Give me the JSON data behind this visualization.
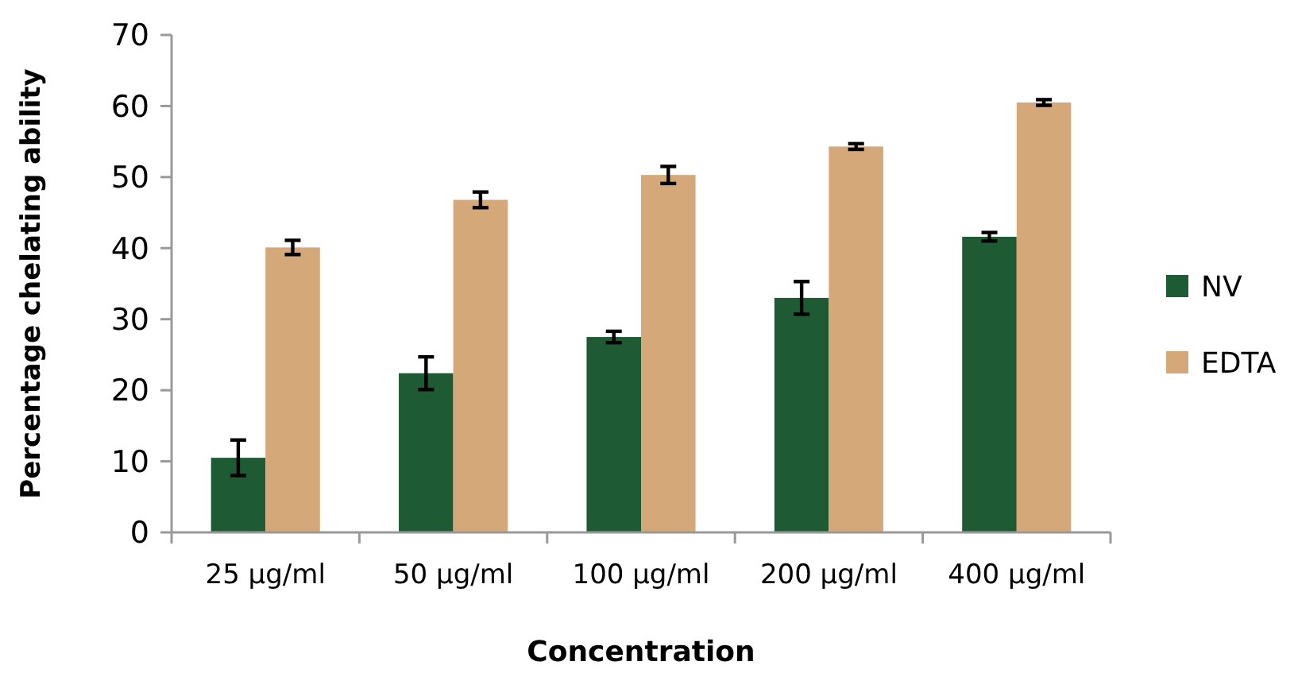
{
  "chart_data": {
    "type": "bar",
    "xlabel": "Concentration",
    "ylabel": "Percentage chelating ability",
    "categories": [
      "25 µg/ml",
      "50 µg/ml",
      "100 µg/ml",
      "200 µg/ml",
      "400 µg/ml"
    ],
    "series": [
      {
        "name": "NV",
        "color": "#1e5a34",
        "values": [
          10.5,
          22.4,
          27.5,
          33,
          41.6
        ],
        "errors": [
          2.5,
          2.3,
          0.8,
          2.3,
          0.6
        ]
      },
      {
        "name": "EDTA",
        "color": "#d4a878",
        "values": [
          40.1,
          46.8,
          50.3,
          54.3,
          60.5
        ],
        "errors": [
          1,
          1.1,
          1.2,
          0.4,
          0.4
        ]
      }
    ],
    "ylim": [
      0,
      70
    ],
    "yticks": [
      0,
      10,
      20,
      30,
      40,
      50,
      60,
      70
    ],
    "legend": "right"
  }
}
